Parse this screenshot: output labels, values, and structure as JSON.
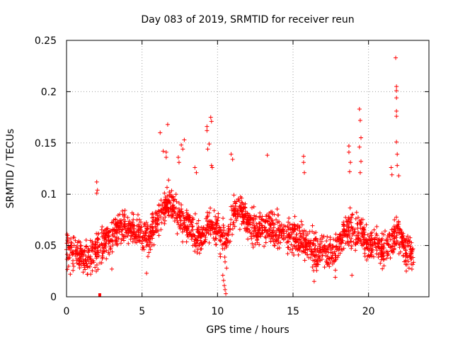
{
  "chart_data": {
    "type": "scatter",
    "title": "Day 083 of 2019, SRMTID for receiver reun",
    "xlabel": "GPS time / hours",
    "ylabel": "SRMTID / TECUs",
    "xlim": [
      0,
      24
    ],
    "ylim": [
      0,
      0.25
    ],
    "xticks": [
      0,
      5,
      10,
      15,
      20
    ],
    "xtick_labels": [
      "0",
      "5",
      "10",
      "15",
      "20"
    ],
    "yticks": [
      0,
      0.05,
      0.1,
      0.15,
      0.2,
      0.25
    ],
    "ytick_labels": [
      "0",
      "0.05",
      "0.1",
      "0.15",
      "0.2",
      "0.25"
    ],
    "grid": true,
    "marker": "+",
    "color": "#ff0000",
    "series": [
      {
        "name": "SRMTID",
        "base_profile": [
          [
            0.0,
            0.045
          ],
          [
            0.5,
            0.045
          ],
          [
            1.0,
            0.04
          ],
          [
            1.5,
            0.04
          ],
          [
            2.0,
            0.045
          ],
          [
            2.5,
            0.055
          ],
          [
            3.0,
            0.06
          ],
          [
            3.5,
            0.065
          ],
          [
            4.0,
            0.07
          ],
          [
            4.5,
            0.065
          ],
          [
            5.0,
            0.06
          ],
          [
            5.5,
            0.06
          ],
          [
            6.0,
            0.075
          ],
          [
            6.5,
            0.09
          ],
          [
            7.0,
            0.09
          ],
          [
            7.5,
            0.08
          ],
          [
            8.0,
            0.07
          ],
          [
            8.5,
            0.06
          ],
          [
            9.0,
            0.055
          ],
          [
            9.5,
            0.07
          ],
          [
            10.0,
            0.065
          ],
          [
            10.5,
            0.055
          ],
          [
            11.0,
            0.08
          ],
          [
            11.5,
            0.085
          ],
          [
            12.0,
            0.075
          ],
          [
            12.5,
            0.065
          ],
          [
            13.0,
            0.07
          ],
          [
            13.5,
            0.065
          ],
          [
            14.0,
            0.065
          ],
          [
            14.5,
            0.06
          ],
          [
            15.0,
            0.06
          ],
          [
            15.5,
            0.055
          ],
          [
            16.0,
            0.05
          ],
          [
            16.5,
            0.045
          ],
          [
            17.0,
            0.045
          ],
          [
            17.5,
            0.04
          ],
          [
            18.0,
            0.05
          ],
          [
            18.5,
            0.065
          ],
          [
            19.0,
            0.065
          ],
          [
            19.5,
            0.065
          ],
          [
            20.0,
            0.05
          ],
          [
            20.5,
            0.05
          ],
          [
            21.0,
            0.045
          ],
          [
            21.5,
            0.055
          ],
          [
            22.0,
            0.06
          ],
          [
            22.5,
            0.045
          ],
          [
            23.0,
            0.04
          ]
        ],
        "outliers": [
          [
            21.8,
            0.233
          ],
          [
            21.85,
            0.205
          ],
          [
            21.85,
            0.201
          ],
          [
            21.85,
            0.194
          ],
          [
            21.85,
            0.181
          ],
          [
            21.85,
            0.176
          ],
          [
            21.85,
            0.151
          ],
          [
            21.9,
            0.139
          ],
          [
            21.9,
            0.128
          ],
          [
            22.0,
            0.118
          ],
          [
            19.4,
            0.183
          ],
          [
            19.45,
            0.172
          ],
          [
            19.5,
            0.155
          ],
          [
            19.4,
            0.146
          ],
          [
            19.5,
            0.132
          ],
          [
            19.45,
            0.121
          ],
          [
            18.7,
            0.147
          ],
          [
            18.7,
            0.141
          ],
          [
            18.8,
            0.131
          ],
          [
            18.75,
            0.122
          ],
          [
            9.55,
            0.175
          ],
          [
            9.6,
            0.171
          ],
          [
            9.3,
            0.166
          ],
          [
            9.3,
            0.162
          ],
          [
            9.35,
            0.144
          ],
          [
            9.45,
            0.149
          ],
          [
            9.6,
            0.128
          ],
          [
            9.65,
            0.126
          ],
          [
            6.7,
            0.168
          ],
          [
            6.2,
            0.16
          ],
          [
            6.4,
            0.142
          ],
          [
            6.6,
            0.141
          ],
          [
            6.6,
            0.136
          ],
          [
            7.4,
            0.136
          ],
          [
            7.45,
            0.131
          ],
          [
            7.6,
            0.148
          ],
          [
            7.7,
            0.144
          ],
          [
            7.8,
            0.153
          ],
          [
            10.9,
            0.139
          ],
          [
            11.0,
            0.134
          ],
          [
            13.3,
            0.138
          ],
          [
            15.7,
            0.137
          ],
          [
            15.7,
            0.131
          ],
          [
            15.75,
            0.121
          ],
          [
            2.0,
            0.112
          ],
          [
            2.05,
            0.104
          ],
          [
            2.0,
            0.101
          ],
          [
            21.5,
            0.126
          ],
          [
            21.55,
            0.119
          ],
          [
            8.5,
            0.126
          ],
          [
            8.6,
            0.121
          ],
          [
            10.35,
            0.021
          ],
          [
            10.4,
            0.016
          ],
          [
            10.45,
            0.011
          ],
          [
            10.5,
            0.007
          ],
          [
            10.55,
            0.003
          ],
          [
            10.6,
            0.028
          ],
          [
            10.5,
            0.034
          ],
          [
            16.4,
            0.015
          ],
          [
            17.8,
            0.019
          ],
          [
            18.9,
            0.021
          ],
          [
            22.5,
            0.025
          ],
          [
            0.25,
            0.022
          ],
          [
            1.1,
            0.024
          ],
          [
            1.6,
            0.022
          ],
          [
            3.0,
            0.027
          ],
          [
            5.3,
            0.023
          ]
        ],
        "bar_mark": [
          2.2,
          0.0
        ]
      }
    ]
  }
}
